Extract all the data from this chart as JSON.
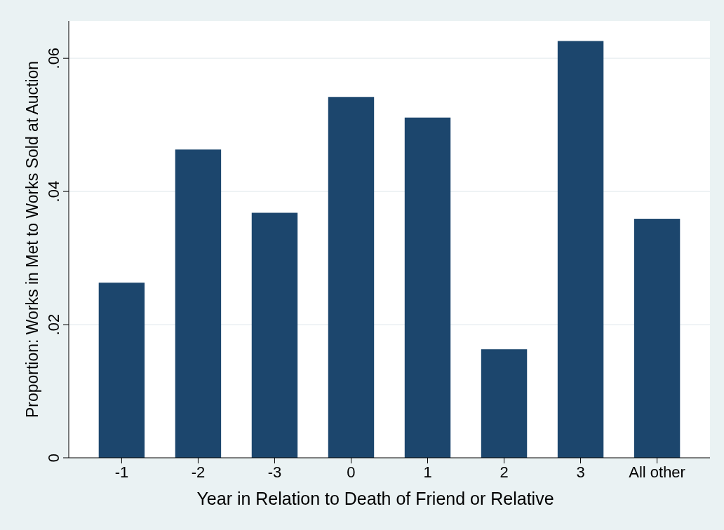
{
  "chart_data": {
    "type": "bar",
    "xlabel": "Year in Relation to Death of Friend or Relative",
    "ylabel": "Proportion: Works in Met to Works Sold at Auction",
    "categories": [
      "-1",
      "-2",
      "-3",
      "0",
      "1",
      "2",
      "3",
      "All other"
    ],
    "values": [
      0.0263,
      0.0463,
      0.0368,
      0.0542,
      0.0511,
      0.0163,
      0.0626,
      0.0359
    ],
    "color": "#1c466d",
    "ylim": [
      0,
      0.0656
    ],
    "yticks": [
      0,
      {
        "value": 0.02,
        "label": ".02"
      },
      {
        "value": 0.04,
        "label": ".04"
      },
      {
        "value": 0.06,
        "label": ".06"
      }
    ],
    "grid": "y"
  }
}
